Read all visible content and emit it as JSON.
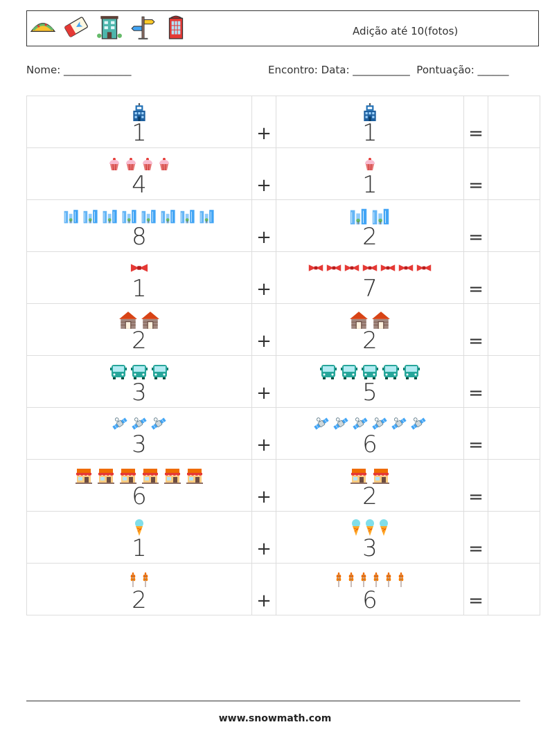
{
  "header": {
    "title": "Adição até 10(fotos)",
    "icons": [
      "taco-icon",
      "ticket-icon",
      "hotel-icon",
      "signpost-icon",
      "phone-booth-icon"
    ]
  },
  "info": {
    "name_line": "Nome: _____________",
    "meta_line": "Encontro: Data: ___________  Pontuação: ______"
  },
  "operators": {
    "plus": "+",
    "equals": "="
  },
  "rows": [
    {
      "left": {
        "count": 1,
        "icon": "office-building-icon"
      },
      "right": {
        "count": 1,
        "icon": "office-building-icon"
      }
    },
    {
      "left": {
        "count": 4,
        "icon": "cupcake-icon"
      },
      "right": {
        "count": 1,
        "icon": "cupcake-icon"
      }
    },
    {
      "left": {
        "count": 8,
        "icon": "city-skyline-icon"
      },
      "right": {
        "count": 2,
        "icon": "city-skyline-icon"
      }
    },
    {
      "left": {
        "count": 1,
        "icon": "bow-tie-icon"
      },
      "right": {
        "count": 7,
        "icon": "bow-tie-icon"
      }
    },
    {
      "left": {
        "count": 2,
        "icon": "house-icon"
      },
      "right": {
        "count": 2,
        "icon": "house-icon"
      }
    },
    {
      "left": {
        "count": 3,
        "icon": "bus-icon"
      },
      "right": {
        "count": 5,
        "icon": "bus-icon"
      }
    },
    {
      "left": {
        "count": 3,
        "icon": "satellite-icon"
      },
      "right": {
        "count": 6,
        "icon": "satellite-icon"
      }
    },
    {
      "left": {
        "count": 6,
        "icon": "shop-icon"
      },
      "right": {
        "count": 2,
        "icon": "shop-icon"
      }
    },
    {
      "left": {
        "count": 1,
        "icon": "ice-cream-icon"
      },
      "right": {
        "count": 3,
        "icon": "ice-cream-icon"
      }
    },
    {
      "left": {
        "count": 2,
        "icon": "wheat-icon"
      },
      "right": {
        "count": 6,
        "icon": "wheat-icon"
      }
    }
  ],
  "footer": {
    "url": "www.snowmath.com"
  }
}
